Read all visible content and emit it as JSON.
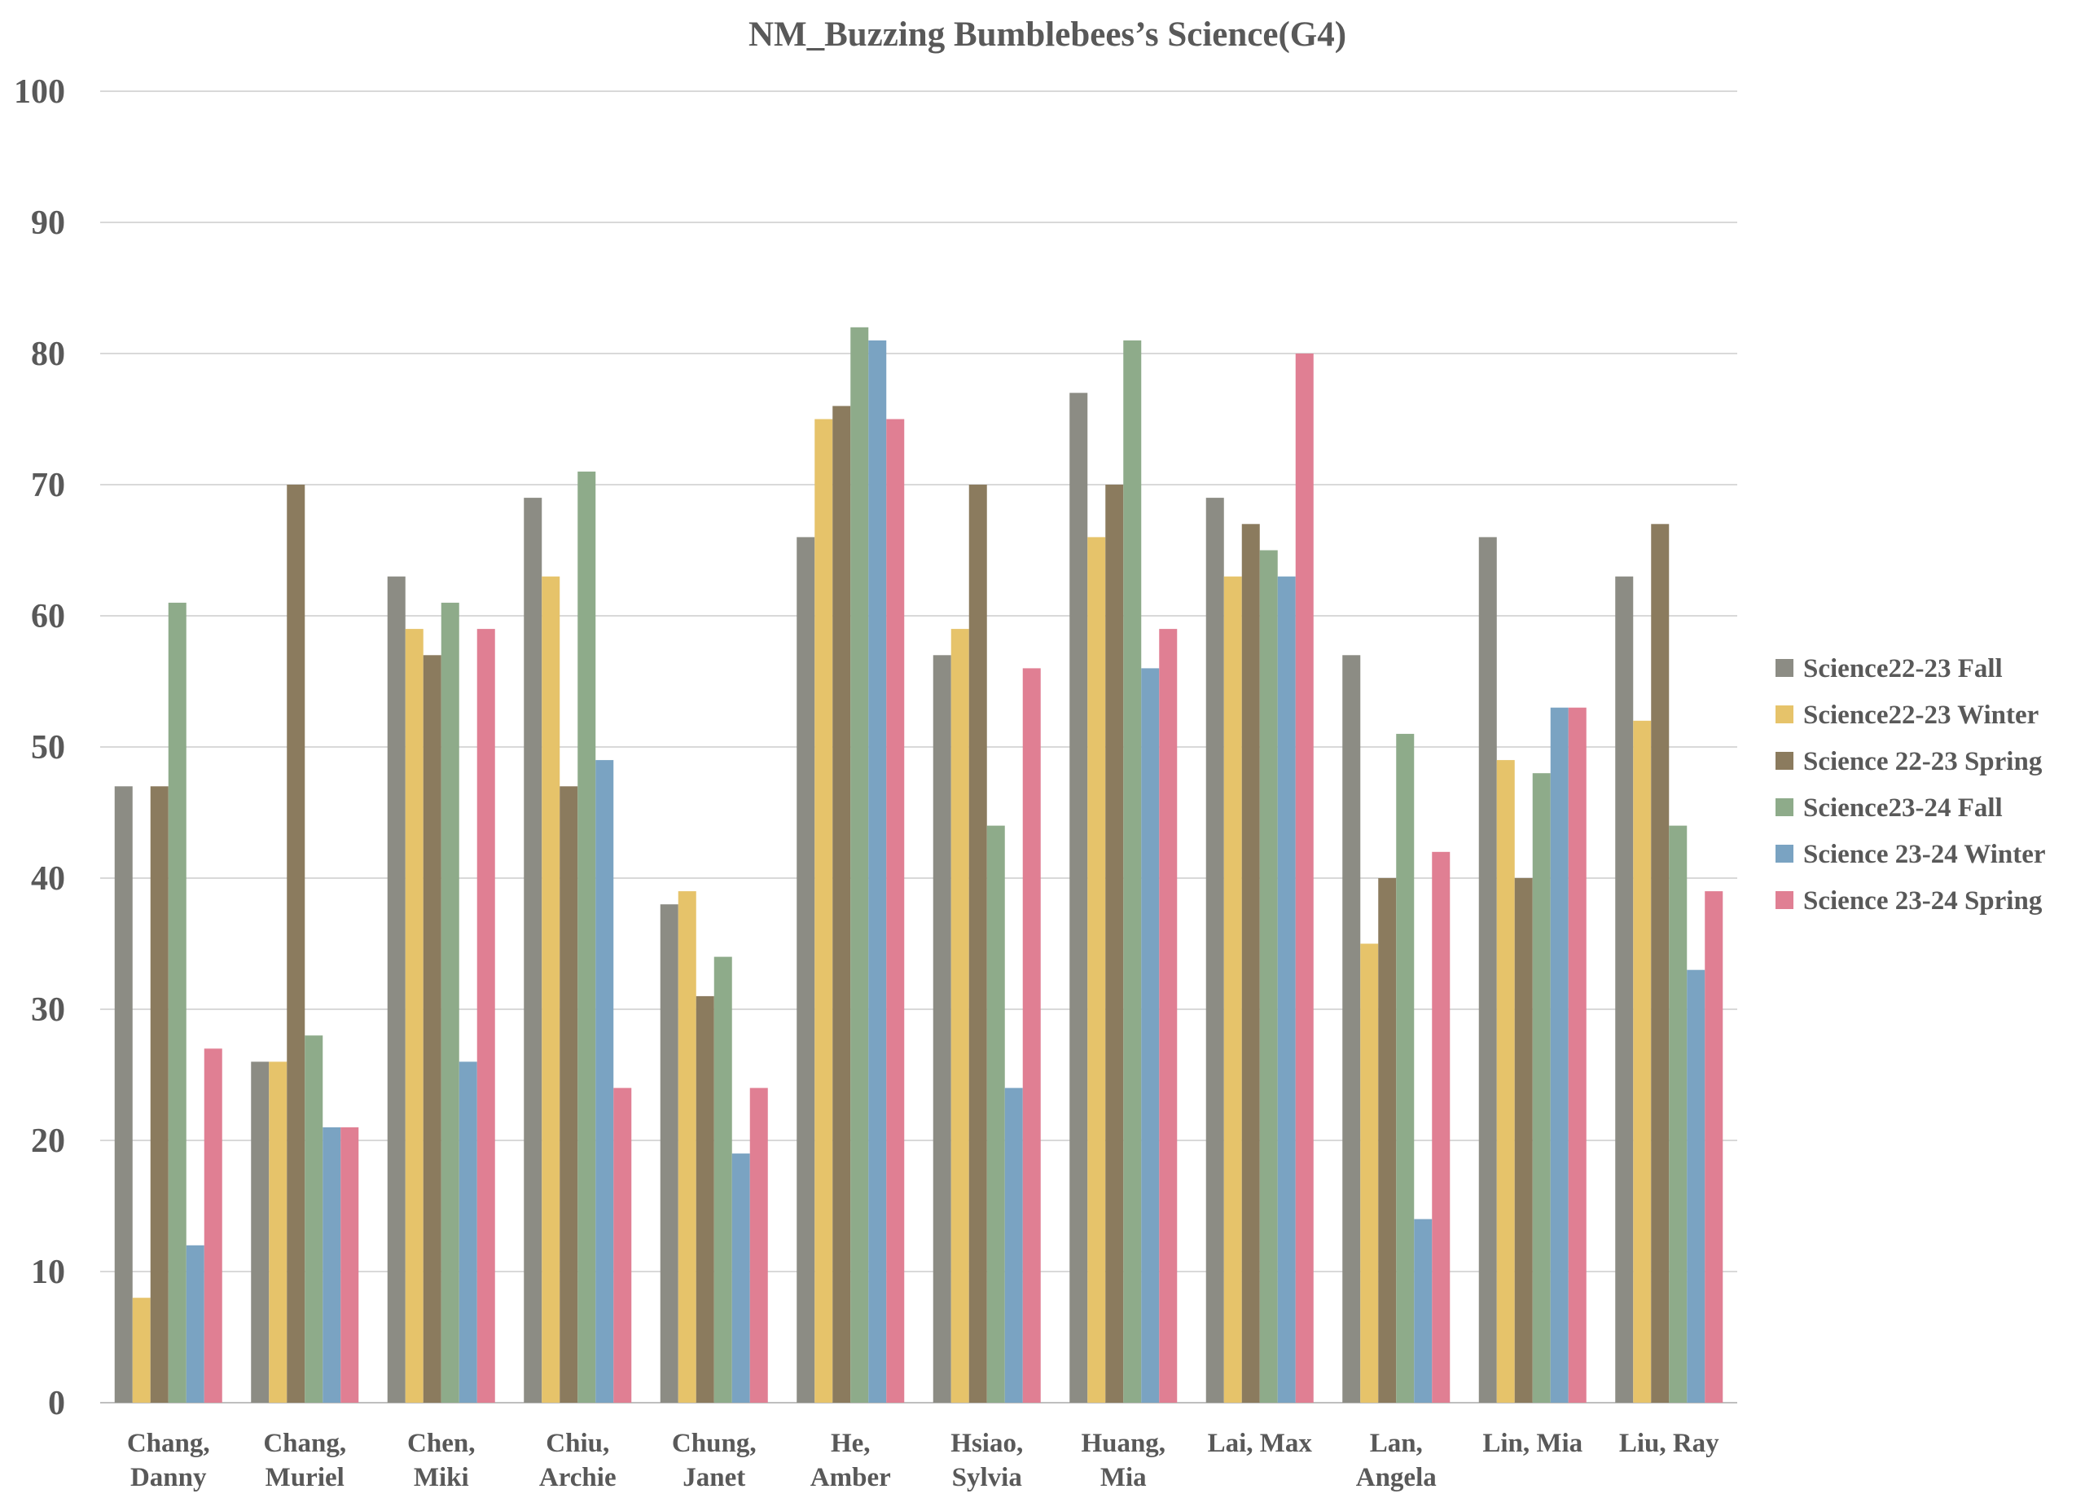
{
  "chart_data": {
    "type": "bar",
    "title": "NM_Buzzing Bumblebees’s Science(G4)",
    "xlabel": "",
    "ylabel": "",
    "ylim": [
      0,
      100
    ],
    "yticks": [
      0,
      10,
      20,
      30,
      40,
      50,
      60,
      70,
      80,
      90,
      100
    ],
    "grid": true,
    "legend_position": "right",
    "categories": [
      [
        "Chang,",
        "Danny"
      ],
      [
        "Chang,",
        "Muriel"
      ],
      [
        "Chen,",
        "Miki"
      ],
      [
        "Chiu,",
        "Archie"
      ],
      [
        "Chung,",
        "Janet"
      ],
      [
        "He,",
        "Amber"
      ],
      [
        "Hsiao,",
        "Sylvia"
      ],
      [
        "Huang,",
        "Mia"
      ],
      [
        "Lai, Max"
      ],
      [
        "Lan,",
        "Angela"
      ],
      [
        "Lin, Mia"
      ],
      [
        "Liu, Ray"
      ]
    ],
    "series": [
      {
        "name": "Science22-23 Fall",
        "color": "#8c8c84",
        "values": [
          47,
          26,
          63,
          69,
          38,
          66,
          57,
          77,
          69,
          57,
          66,
          63
        ]
      },
      {
        "name": "Science22-23 Winter",
        "color": "#e6c36a",
        "values": [
          8,
          26,
          59,
          63,
          39,
          75,
          59,
          66,
          63,
          35,
          49,
          52
        ]
      },
      {
        "name": "Science 22-23 Spring",
        "color": "#8b7b5e",
        "values": [
          47,
          70,
          57,
          47,
          31,
          76,
          70,
          70,
          67,
          40,
          40,
          67
        ]
      },
      {
        "name": "Science23-24 Fall",
        "color": "#8eab8a",
        "values": [
          61,
          28,
          61,
          71,
          34,
          82,
          44,
          81,
          65,
          51,
          48,
          44
        ]
      },
      {
        "name": "Science 23-24 Winter",
        "color": "#7aa3c2",
        "values": [
          12,
          21,
          26,
          49,
          19,
          81,
          24,
          56,
          63,
          14,
          53,
          33
        ]
      },
      {
        "name": "Science 23-24 Spring",
        "color": "#e07f93",
        "values": [
          27,
          21,
          59,
          24,
          24,
          75,
          56,
          59,
          80,
          42,
          53,
          39
        ]
      }
    ]
  }
}
